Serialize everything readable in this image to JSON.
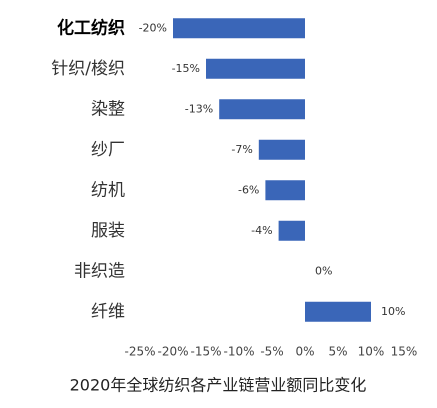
{
  "chart_data": {
    "type": "bar",
    "orientation": "horizontal",
    "title": "2020年全球纺织各产业链营业额同比变化",
    "categories": [
      "化工纺织",
      "针织/梭织",
      "染整",
      "纱厂",
      "纺机",
      "服装",
      "非织造",
      "纤维"
    ],
    "values": [
      -20,
      -15,
      -13,
      -7,
      -6,
      -4,
      0,
      10
    ],
    "value_labels": [
      "-20%",
      "-15%",
      "-13%",
      "-7%",
      "-6%",
      "-4%",
      "0%",
      "10%"
    ],
    "color": "#3a66b8",
    "xlim": [
      -25,
      15
    ],
    "xticks": [
      {
        "value": -25,
        "label": "-25%"
      },
      {
        "value": -20,
        "label": "-20%"
      },
      {
        "value": -15,
        "label": "-15%"
      },
      {
        "value": -10,
        "label": "-10%"
      },
      {
        "value": -5,
        "label": "-5%"
      },
      {
        "value": 0,
        "label": "0%"
      },
      {
        "value": 5,
        "label": "5%"
      },
      {
        "value": 10,
        "label": "10%"
      },
      {
        "value": 15,
        "label": "15%"
      }
    ],
    "grid": false
  }
}
